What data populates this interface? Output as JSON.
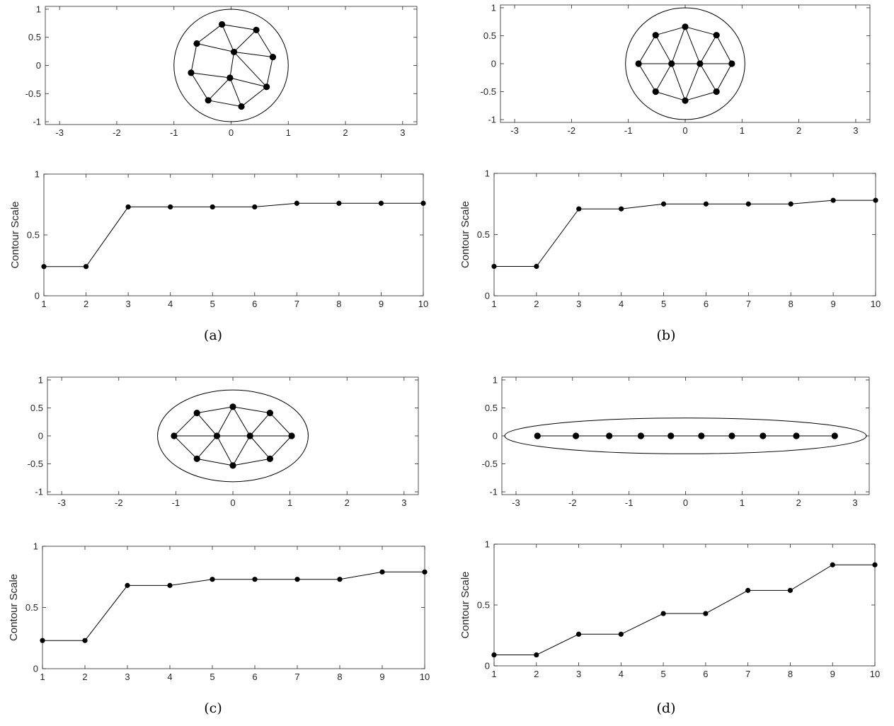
{
  "chart_data": [
    {
      "panel": "(a)",
      "type": "scatter",
      "subtype": "graph-embedding",
      "xlim": [
        -3.25,
        3.25
      ],
      "ylim": [
        -1.05,
        1.05
      ],
      "xticks": [
        -3,
        -2,
        -1,
        0,
        1,
        2,
        3
      ],
      "yticks": [
        -1,
        -0.5,
        0,
        0.5,
        1
      ],
      "ellipse": {
        "center": [
          0,
          0
        ],
        "rx": 1.0,
        "ry": 1.0
      },
      "nodes": [
        [
          -0.16,
          0.73
        ],
        [
          0.44,
          0.63
        ],
        [
          -0.6,
          0.39
        ],
        [
          0.05,
          0.24
        ],
        [
          0.73,
          0.15
        ],
        [
          -0.7,
          -0.13
        ],
        [
          -0.02,
          -0.22
        ],
        [
          0.62,
          -0.38
        ],
        [
          -0.4,
          -0.62
        ],
        [
          0.18,
          -0.73
        ]
      ],
      "edges": [
        [
          0,
          1
        ],
        [
          0,
          2
        ],
        [
          0,
          3
        ],
        [
          1,
          3
        ],
        [
          1,
          4
        ],
        [
          2,
          3
        ],
        [
          2,
          5
        ],
        [
          3,
          4
        ],
        [
          3,
          6
        ],
        [
          3,
          7
        ],
        [
          4,
          7
        ],
        [
          5,
          6
        ],
        [
          5,
          8
        ],
        [
          6,
          8
        ],
        [
          6,
          9
        ],
        [
          6,
          7
        ],
        [
          7,
          9
        ],
        [
          8,
          9
        ]
      ]
    },
    {
      "panel": "(a)",
      "type": "line",
      "ylabel": "Contour Scale",
      "xlim": [
        1,
        10
      ],
      "ylim": [
        0,
        1
      ],
      "xticks": [
        1,
        2,
        3,
        4,
        5,
        6,
        7,
        8,
        9,
        10
      ],
      "yticks": [
        0,
        0.5,
        1
      ],
      "x": [
        1,
        2,
        3,
        4,
        5,
        6,
        7,
        8,
        9,
        10
      ],
      "y": [
        0.24,
        0.24,
        0.73,
        0.73,
        0.73,
        0.73,
        0.76,
        0.76,
        0.76,
        0.76
      ]
    },
    {
      "panel": "(b)",
      "type": "scatter",
      "subtype": "graph-embedding",
      "xlim": [
        -3.25,
        3.25
      ],
      "ylim": [
        -1.05,
        1.05
      ],
      "xticks": [
        -3,
        -2,
        -1,
        0,
        1,
        2,
        3
      ],
      "yticks": [
        -1,
        -0.5,
        0,
        0.5,
        1
      ],
      "ellipse": {
        "center": [
          0,
          0
        ],
        "rx": 1.05,
        "ry": 1.0
      },
      "nodes": [
        [
          0,
          0.66
        ],
        [
          -0.52,
          0.51
        ],
        [
          0.55,
          0.51
        ],
        [
          -0.82,
          0
        ],
        [
          -0.24,
          0
        ],
        [
          0.26,
          0
        ],
        [
          0.82,
          0
        ],
        [
          -0.52,
          -0.5
        ],
        [
          0.55,
          -0.5
        ],
        [
          0,
          -0.66
        ]
      ],
      "edges": [
        [
          0,
          1
        ],
        [
          0,
          2
        ],
        [
          0,
          4
        ],
        [
          0,
          5
        ],
        [
          1,
          3
        ],
        [
          1,
          4
        ],
        [
          2,
          5
        ],
        [
          2,
          6
        ],
        [
          3,
          4
        ],
        [
          4,
          5
        ],
        [
          5,
          6
        ],
        [
          3,
          7
        ],
        [
          4,
          7
        ],
        [
          4,
          9
        ],
        [
          5,
          9
        ],
        [
          5,
          8
        ],
        [
          6,
          8
        ],
        [
          7,
          9
        ],
        [
          8,
          9
        ]
      ]
    },
    {
      "panel": "(b)",
      "type": "line",
      "ylabel": "Contour Scale",
      "xlim": [
        1,
        10
      ],
      "ylim": [
        0,
        1
      ],
      "xticks": [
        1,
        2,
        3,
        4,
        5,
        6,
        7,
        8,
        9,
        10
      ],
      "yticks": [
        0,
        0.5,
        1
      ],
      "x": [
        1,
        2,
        3,
        4,
        5,
        6,
        7,
        8,
        9,
        10
      ],
      "y": [
        0.24,
        0.24,
        0.71,
        0.71,
        0.75,
        0.75,
        0.75,
        0.75,
        0.78,
        0.78
      ]
    },
    {
      "panel": "(c)",
      "type": "scatter",
      "subtype": "graph-embedding",
      "xlim": [
        -3.25,
        3.25
      ],
      "ylim": [
        -1.05,
        1.05
      ],
      "xticks": [
        -3,
        -2,
        -1,
        0,
        1,
        2,
        3
      ],
      "yticks": [
        -1,
        -0.5,
        0,
        0.5,
        1
      ],
      "ellipse": {
        "center": [
          0,
          0
        ],
        "rx": 1.32,
        "ry": 0.82
      },
      "nodes": [
        [
          0,
          0.52
        ],
        [
          -0.63,
          0.41
        ],
        [
          0.65,
          0.41
        ],
        [
          -1.03,
          0
        ],
        [
          -0.28,
          0
        ],
        [
          0.3,
          0
        ],
        [
          1.03,
          0
        ],
        [
          -0.63,
          -0.41
        ],
        [
          0.65,
          -0.41
        ],
        [
          0,
          -0.53
        ]
      ],
      "edges": [
        [
          0,
          1
        ],
        [
          0,
          2
        ],
        [
          0,
          4
        ],
        [
          0,
          5
        ],
        [
          1,
          3
        ],
        [
          1,
          4
        ],
        [
          2,
          5
        ],
        [
          2,
          6
        ],
        [
          3,
          4
        ],
        [
          4,
          5
        ],
        [
          5,
          6
        ],
        [
          3,
          7
        ],
        [
          4,
          7
        ],
        [
          4,
          9
        ],
        [
          5,
          9
        ],
        [
          5,
          8
        ],
        [
          6,
          8
        ],
        [
          7,
          9
        ],
        [
          8,
          9
        ]
      ]
    },
    {
      "panel": "(c)",
      "type": "line",
      "ylabel": "Contour Scale",
      "xlim": [
        1,
        10
      ],
      "ylim": [
        0,
        1
      ],
      "xticks": [
        1,
        2,
        3,
        4,
        5,
        6,
        7,
        8,
        9,
        10
      ],
      "yticks": [
        0,
        0.5,
        1
      ],
      "x": [
        1,
        2,
        3,
        4,
        5,
        6,
        7,
        8,
        9,
        10
      ],
      "y": [
        0.23,
        0.23,
        0.68,
        0.68,
        0.73,
        0.73,
        0.73,
        0.73,
        0.79,
        0.79
      ]
    },
    {
      "panel": "(d)",
      "type": "scatter",
      "subtype": "graph-embedding",
      "xlim": [
        -3.25,
        3.25
      ],
      "ylim": [
        -1.05,
        1.05
      ],
      "xticks": [
        -3,
        -2,
        -1,
        0,
        1,
        2,
        3
      ],
      "yticks": [
        -1,
        -0.5,
        0,
        0.5,
        1
      ],
      "ellipse": {
        "center": [
          0,
          0
        ],
        "rx": 3.2,
        "ry": 0.32
      },
      "nodes": [
        [
          -2.62,
          0
        ],
        [
          -1.94,
          0
        ],
        [
          -1.35,
          0
        ],
        [
          -0.79,
          0
        ],
        [
          -0.26,
          0
        ],
        [
          0.28,
          0
        ],
        [
          0.82,
          0
        ],
        [
          1.37,
          0
        ],
        [
          1.96,
          0
        ],
        [
          2.64,
          0
        ]
      ],
      "edges": [
        [
          0,
          1
        ],
        [
          1,
          2
        ],
        [
          2,
          3
        ],
        [
          3,
          4
        ],
        [
          4,
          5
        ],
        [
          5,
          6
        ],
        [
          6,
          7
        ],
        [
          7,
          8
        ],
        [
          8,
          9
        ]
      ]
    },
    {
      "panel": "(d)",
      "type": "line",
      "ylabel": "Contour Scale",
      "xlim": [
        1,
        10
      ],
      "ylim": [
        0,
        1
      ],
      "xticks": [
        1,
        2,
        3,
        4,
        5,
        6,
        7,
        8,
        9,
        10
      ],
      "yticks": [
        0,
        0.5,
        1
      ],
      "x": [
        1,
        2,
        3,
        4,
        5,
        6,
        7,
        8,
        9,
        10
      ],
      "y": [
        0.09,
        0.09,
        0.26,
        0.26,
        0.43,
        0.43,
        0.62,
        0.62,
        0.83,
        0.83
      ]
    }
  ],
  "captions": [
    "(a)",
    "(b)",
    "(c)",
    "(d)"
  ]
}
